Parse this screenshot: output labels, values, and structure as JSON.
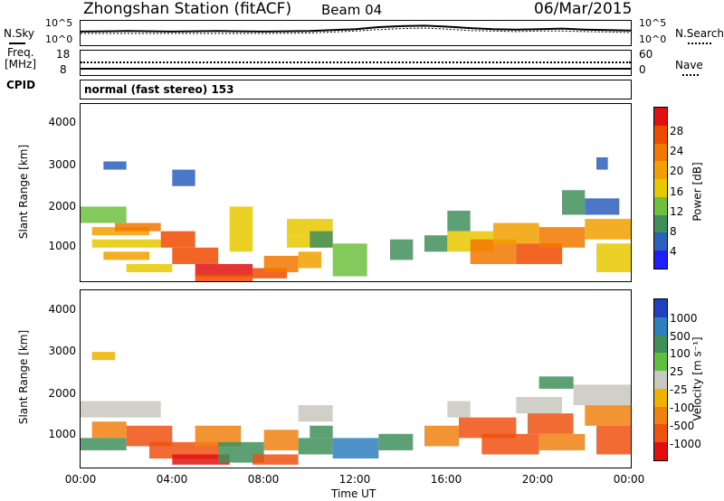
{
  "header": {
    "station": "Zhongshan Station (fitACF)",
    "beam": "Beam 04",
    "date": "06/Mar/2015"
  },
  "noise_panel": {
    "left_label": "N.Sky",
    "right_label": "N.Search",
    "left_ticks": [
      "10^5",
      "10^0"
    ],
    "right_ticks": [
      "10^5",
      "10^0"
    ]
  },
  "freq_panel": {
    "left_label_1": "Freq.",
    "left_label_2": "[MHz]",
    "left_ticks": [
      "18",
      "8"
    ],
    "right_label": "Nave",
    "right_ticks": [
      "60",
      "0"
    ]
  },
  "cpid": {
    "label": "CPID",
    "value": "normal (fast stereo) 153"
  },
  "power_panel": {
    "ylabel": "Slant Range [km]",
    "yticks": [
      "4000",
      "3000",
      "2000",
      "1000"
    ],
    "colorbar_label": "Power [dB]",
    "colorbar_ticks": [
      "28",
      "24",
      "20",
      "16",
      "12",
      "8",
      "4"
    ],
    "colors": [
      "#1e1eff",
      "#2d5fbd",
      "#3f8f5a",
      "#6fbf3f",
      "#e8c800",
      "#f2a000",
      "#f27800",
      "#f04a00",
      "#e01010"
    ]
  },
  "velocity_panel": {
    "ylabel": "Slant Range [km]",
    "yticks": [
      "4000",
      "3000",
      "2000",
      "1000"
    ],
    "colorbar_label": "Velocity [m s⁻¹]",
    "colorbar_ticks": [
      "1000",
      "500",
      "100",
      "25",
      "-25",
      "-100",
      "-500",
      "-1000"
    ],
    "colors": [
      "#2040c0",
      "#2f7fbf",
      "#3f8f5a",
      "#5fbf3f",
      "#c8c8c0",
      "#f0b000",
      "#f08010",
      "#f05010",
      "#e01010"
    ]
  },
  "xaxis": {
    "ticks": [
      "00:00",
      "04:00",
      "08:00",
      "12:00",
      "16:00",
      "20:00",
      "00:00"
    ],
    "label": "Time UT"
  },
  "chart_data": [
    {
      "type": "line",
      "name": "noise",
      "x": [
        0,
        2,
        4,
        6,
        8,
        10,
        12,
        13,
        14,
        15,
        16,
        17,
        18,
        19,
        20,
        21,
        22,
        23,
        24
      ],
      "series": [
        {
          "values": [
            2.8,
            2.9,
            2.8,
            2.9,
            2.8,
            2.9,
            3.3,
            3.7,
            3.9,
            4.0,
            3.8,
            3.5,
            3.3,
            3.2,
            3.3,
            3.4,
            3.2,
            3.1,
            3.0
          ]
        },
        {
          "values": [
            2.4,
            2.4,
            2.4,
            2.4,
            2.4,
            2.5,
            2.9,
            3.2,
            3.4,
            3.5,
            3.3,
            3.0,
            2.9,
            2.8,
            2.9,
            2.9,
            2.8,
            2.7,
            2.6
          ]
        }
      ],
      "ylim": [
        0,
        5
      ]
    },
    {
      "type": "heatmap",
      "name": "power",
      "xlim": [
        0,
        24
      ],
      "ylim": [
        180,
        4500
      ],
      "cells": [
        [
          0,
          2000,
          2,
          1600,
          12
        ],
        [
          0.5,
          1500,
          3,
          1300,
          18
        ],
        [
          0.5,
          1200,
          3.5,
          1000,
          16
        ],
        [
          1,
          900,
          3,
          700,
          20
        ],
        [
          2,
          600,
          4,
          400,
          14
        ],
        [
          1.5,
          1600,
          3.5,
          1400,
          22
        ],
        [
          3.5,
          1400,
          5,
          1000,
          24
        ],
        [
          4,
          1000,
          6,
          600,
          26
        ],
        [
          5,
          600,
          7.5,
          300,
          28
        ],
        [
          5,
          350,
          7.5,
          180,
          26
        ],
        [
          6.5,
          2000,
          7.5,
          900,
          16
        ],
        [
          7.5,
          500,
          9,
          250,
          24
        ],
        [
          8,
          800,
          9.5,
          400,
          22
        ],
        [
          9,
          1700,
          11,
          1300,
          16
        ],
        [
          9,
          1300,
          11,
          1000,
          14
        ],
        [
          9.5,
          900,
          10.5,
          500,
          20
        ],
        [
          10,
          1400,
          11,
          1000,
          10
        ],
        [
          11,
          1100,
          12.5,
          300,
          12
        ],
        [
          13.5,
          1200,
          14.5,
          700,
          10
        ],
        [
          15,
          1300,
          16,
          900,
          8
        ],
        [
          16,
          1900,
          17,
          1400,
          10
        ],
        [
          16,
          1400,
          18,
          900,
          16
        ],
        [
          17,
          1200,
          19,
          600,
          22
        ],
        [
          18,
          1600,
          20,
          1100,
          20
        ],
        [
          19,
          1100,
          21,
          600,
          26
        ],
        [
          20,
          1500,
          22,
          1000,
          22
        ],
        [
          21,
          2400,
          22,
          1800,
          10
        ],
        [
          22,
          2200,
          23.5,
          1800,
          6
        ],
        [
          22,
          1700,
          24,
          1200,
          18
        ],
        [
          22.5,
          1100,
          24,
          400,
          16
        ],
        [
          22.5,
          3200,
          23,
          2900,
          6
        ],
        [
          1,
          3100,
          2,
          2900,
          6
        ],
        [
          4,
          2900,
          5,
          2500,
          4
        ]
      ]
    },
    {
      "type": "heatmap",
      "name": "velocity",
      "xlim": [
        0,
        24
      ],
      "ylim": [
        180,
        4500
      ],
      "cells": [
        [
          0,
          1800,
          3.5,
          1400,
          0
        ],
        [
          0.5,
          1300,
          2,
          900,
          -100
        ],
        [
          0,
          900,
          2,
          600,
          100
        ],
        [
          2,
          1200,
          4,
          700,
          -500
        ],
        [
          3,
          800,
          6,
          400,
          -500
        ],
        [
          4,
          500,
          6.5,
          250,
          -1000
        ],
        [
          5,
          1200,
          7,
          700,
          -100
        ],
        [
          6,
          800,
          8,
          300,
          100
        ],
        [
          7.5,
          500,
          9.5,
          250,
          -500
        ],
        [
          8,
          1100,
          9.5,
          600,
          -100
        ],
        [
          9.5,
          1700,
          11,
          1300,
          0
        ],
        [
          10,
          1200,
          11,
          900,
          100
        ],
        [
          9.5,
          900,
          11,
          500,
          100
        ],
        [
          11,
          900,
          13,
          400,
          500
        ],
        [
          13,
          1000,
          14.5,
          600,
          100
        ],
        [
          15,
          1200,
          16.5,
          700,
          -100
        ],
        [
          16,
          1800,
          17,
          1400,
          0
        ],
        [
          16.5,
          1400,
          19,
          900,
          -500
        ],
        [
          17.5,
          1000,
          20,
          500,
          -500
        ],
        [
          19,
          1900,
          21,
          1500,
          0
        ],
        [
          19.5,
          1500,
          21.5,
          1000,
          -500
        ],
        [
          20,
          1000,
          22,
          600,
          -100
        ],
        [
          21.5,
          2200,
          24,
          1700,
          0
        ],
        [
          22,
          1700,
          24,
          1200,
          -100
        ],
        [
          22.5,
          1200,
          24,
          500,
          -500
        ],
        [
          20,
          2400,
          21.5,
          2100,
          100
        ],
        [
          0.5,
          3000,
          1.5,
          2800,
          -25
        ]
      ]
    }
  ]
}
